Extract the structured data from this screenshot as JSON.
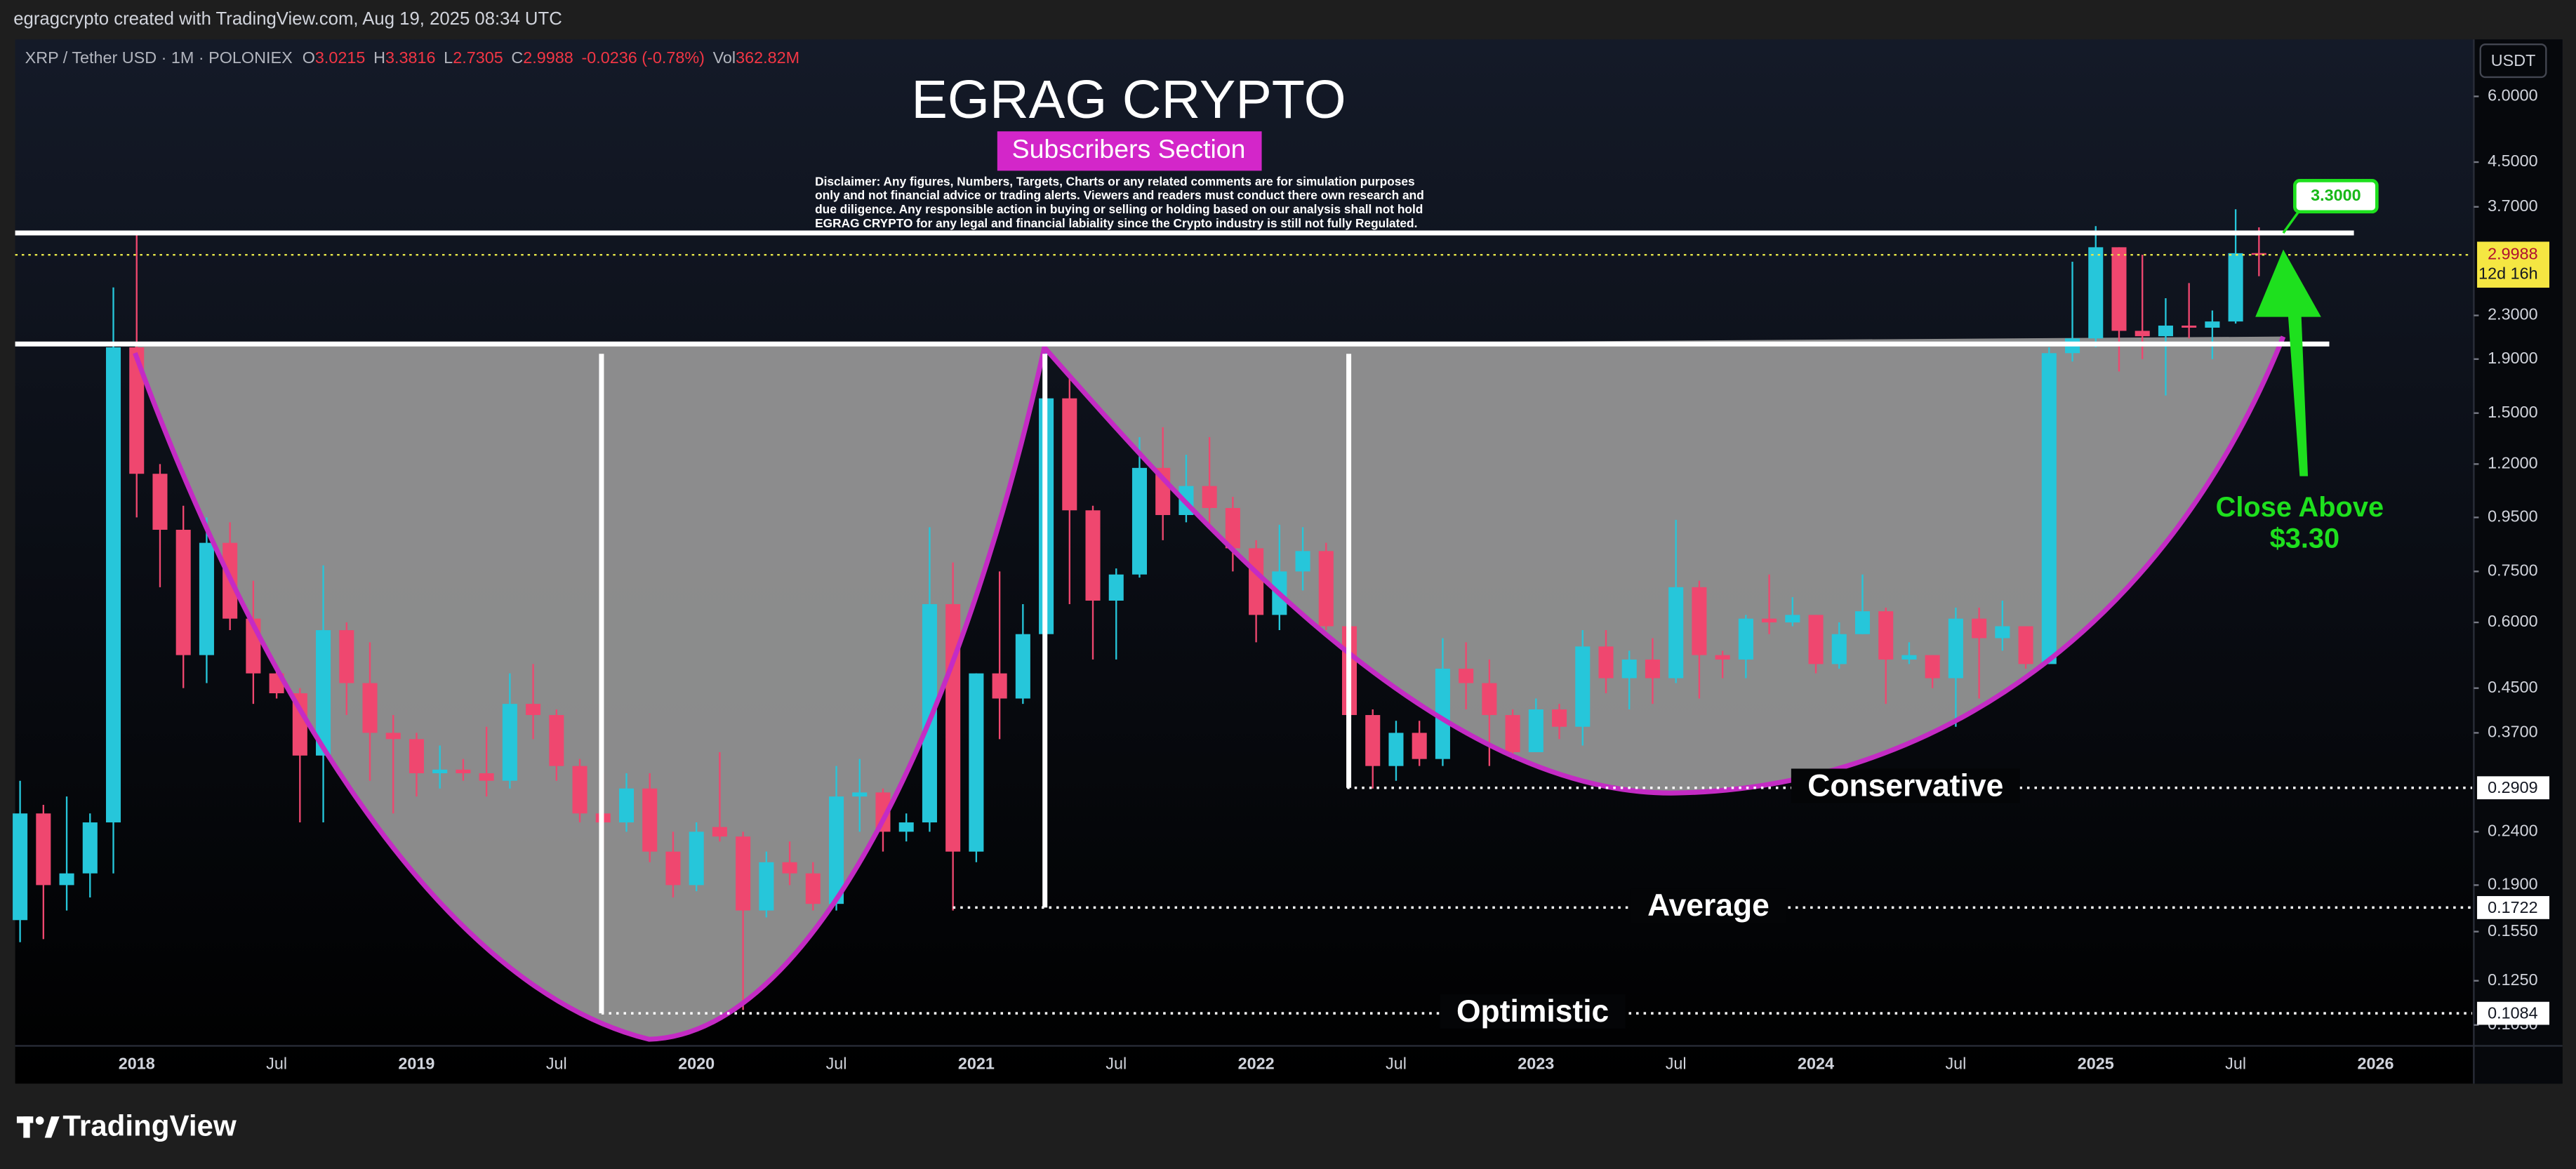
{
  "header": {
    "credit": "egragcrypto created with TradingView.com, Aug 19, 2025 08:34 UTC",
    "brand": "TradingView"
  },
  "chart_data": {
    "type": "candlestick",
    "symbol": "XRP / Tether USD · 1M · POLONIEX",
    "ohlc_labels": [
      "O",
      "H",
      "L",
      "C"
    ],
    "change": "-0.0236 (-0.78%)",
    "volume_label": "Vol",
    "volume": "362.82M",
    "currency": "USDT",
    "title": "EGRAG CRYPTO",
    "subtitle": "Subscribers Section",
    "disclaimer": [
      "Disclaimer: Any figures, Numbers, Targets, Charts or any related comments are for simulation purposes",
      "only and not financial advice or trading alerts. Viewers and readers must conduct there own research and",
      "due diligence. Any responsible action in buying or selling or holding based on our analysis shall not hold",
      "EGRAG CRYPTO for any legal and financial labiality since the Crypto industry is still not fully Regulated."
    ],
    "categories": [
      null,
      null,
      null,
      null,
      null,
      "2018",
      null,
      null,
      null,
      null,
      null,
      "Jul",
      null,
      null,
      null,
      null,
      null,
      "2019",
      null,
      null,
      null,
      null,
      null,
      "Jul",
      null,
      null,
      null,
      null,
      null,
      "2020",
      null,
      null,
      null,
      null,
      null,
      "Jul",
      null,
      null,
      null,
      null,
      null,
      "2021",
      null,
      null,
      null,
      null,
      null,
      "Jul",
      null,
      null,
      null,
      null,
      null,
      "2022",
      null,
      null,
      null,
      null,
      null,
      "Jul",
      null,
      null,
      null,
      null,
      null,
      "2023",
      null,
      null,
      null,
      null,
      null,
      "Jul",
      null,
      null,
      null,
      null,
      null,
      "2024",
      null,
      null,
      null,
      null,
      null,
      "Jul",
      null,
      null,
      null,
      null,
      null,
      "2025",
      null,
      null,
      null,
      null,
      null,
      "Jul",
      null,
      null,
      null,
      null,
      null,
      "2026",
      null,
      null,
      null,
      null
    ],
    "open": [
      0.163,
      0.26,
      0.19,
      0.2,
      0.25,
      2.0,
      1.15,
      0.9,
      0.52,
      0.85,
      0.61,
      0.48,
      0.44,
      0.335,
      0.58,
      0.46,
      0.37,
      0.36,
      0.31,
      0.315,
      0.31,
      0.3,
      0.42,
      0.4,
      0.32,
      0.26,
      0.25,
      0.29,
      0.22,
      0.19,
      0.245,
      0.235,
      0.17,
      0.21,
      0.2,
      0.175,
      0.28,
      0.285,
      0.24,
      0.25,
      0.65,
      0.22,
      0.48,
      0.43,
      0.57,
      1.6,
      0.98,
      0.66,
      0.74,
      1.18,
      0.96,
      1.09,
      0.99,
      0.83,
      0.62,
      0.75,
      0.82,
      0.59,
      0.4,
      0.32,
      0.37,
      0.33,
      0.49,
      0.46,
      0.4,
      0.34,
      0.41,
      0.38,
      0.54,
      0.47,
      0.51,
      0.47,
      0.7,
      0.52,
      0.51,
      0.61,
      0.6,
      0.62,
      0.5,
      0.57,
      0.63,
      0.51,
      0.52,
      0.47,
      0.61,
      0.56,
      0.59,
      0.5,
      1.95,
      2.08,
      3.1,
      2.15,
      2.1,
      2.2,
      2.18,
      2.24,
      3.0215,
      null,
      null,
      null,
      null,
      null,
      null,
      null,
      null,
      null
    ],
    "high": [
      0.3,
      0.27,
      0.28,
      0.26,
      2.6,
      3.3,
      1.2,
      1.0,
      0.95,
      0.93,
      0.72,
      0.5,
      0.45,
      0.77,
      0.6,
      0.55,
      0.4,
      0.37,
      0.35,
      0.33,
      0.38,
      0.48,
      0.5,
      0.41,
      0.33,
      0.31,
      0.31,
      0.31,
      0.24,
      0.25,
      0.34,
      0.24,
      0.22,
      0.23,
      0.21,
      0.32,
      0.33,
      0.29,
      0.26,
      0.91,
      0.78,
      0.48,
      0.75,
      0.65,
      1.97,
      1.75,
      1.0,
      0.76,
      1.35,
      1.41,
      1.25,
      1.35,
      1.04,
      0.86,
      0.92,
      0.91,
      0.85,
      0.65,
      0.41,
      0.39,
      0.39,
      0.56,
      0.55,
      0.51,
      0.41,
      0.43,
      0.42,
      0.58,
      0.58,
      0.53,
      0.56,
      0.94,
      0.72,
      0.53,
      0.62,
      0.74,
      0.67,
      0.62,
      0.6,
      0.74,
      0.64,
      0.55,
      0.52,
      0.64,
      0.64,
      0.66,
      0.59,
      2.0,
      2.91,
      3.4,
      3.1,
      3.0,
      2.48,
      2.65,
      2.35,
      3.66,
      3.3816,
      null,
      null,
      null,
      null,
      null,
      null,
      null,
      null,
      null
    ],
    "low": [
      0.148,
      0.15,
      0.17,
      0.18,
      0.2,
      0.95,
      0.7,
      0.45,
      0.46,
      0.58,
      0.42,
      0.43,
      0.25,
      0.25,
      0.4,
      0.3,
      0.26,
      0.28,
      0.29,
      0.3,
      0.28,
      0.29,
      0.36,
      0.3,
      0.25,
      0.22,
      0.24,
      0.21,
      0.18,
      0.185,
      0.23,
      0.11,
      0.165,
      0.19,
      0.17,
      0.17,
      0.24,
      0.22,
      0.23,
      0.24,
      0.17,
      0.21,
      0.36,
      0.42,
      0.55,
      0.65,
      0.51,
      0.51,
      0.73,
      0.86,
      0.93,
      0.92,
      0.75,
      0.55,
      0.58,
      0.69,
      0.58,
      0.33,
      0.29,
      0.3,
      0.32,
      0.32,
      0.41,
      0.32,
      0.33,
      0.34,
      0.36,
      0.35,
      0.44,
      0.41,
      0.42,
      0.46,
      0.43,
      0.47,
      0.47,
      0.57,
      0.59,
      0.48,
      0.49,
      0.57,
      0.42,
      0.5,
      0.45,
      0.38,
      0.43,
      0.53,
      0.49,
      0.5,
      1.88,
      2.0,
      1.8,
      1.9,
      1.62,
      2.08,
      1.9,
      2.22,
      2.7305,
      null,
      null,
      null,
      null,
      null,
      null,
      null,
      null,
      null
    ],
    "close": [
      0.26,
      0.19,
      0.2,
      0.25,
      2.0,
      1.15,
      0.9,
      0.52,
      0.85,
      0.61,
      0.48,
      0.44,
      0.335,
      0.58,
      0.46,
      0.37,
      0.36,
      0.31,
      0.315,
      0.31,
      0.3,
      0.42,
      0.4,
      0.32,
      0.26,
      0.25,
      0.29,
      0.22,
      0.19,
      0.24,
      0.235,
      0.17,
      0.21,
      0.2,
      0.175,
      0.28,
      0.285,
      0.24,
      0.25,
      0.65,
      0.22,
      0.48,
      0.43,
      0.57,
      1.6,
      0.98,
      0.66,
      0.74,
      1.18,
      0.96,
      1.09,
      0.99,
      0.83,
      0.62,
      0.75,
      0.82,
      0.59,
      0.4,
      0.32,
      0.37,
      0.33,
      0.49,
      0.46,
      0.4,
      0.34,
      0.41,
      0.38,
      0.54,
      0.47,
      0.51,
      0.47,
      0.7,
      0.52,
      0.51,
      0.61,
      0.6,
      0.62,
      0.5,
      0.57,
      0.63,
      0.51,
      0.52,
      0.47,
      0.61,
      0.56,
      0.59,
      0.5,
      1.95,
      2.08,
      3.1,
      2.15,
      2.1,
      2.2,
      2.18,
      2.24,
      3.02,
      2.9988,
      null,
      null,
      null,
      null,
      null,
      null,
      null,
      null,
      null
    ],
    "up_color": "#26c6da",
    "down_color": "#ef476f",
    "log_scale": true,
    "ylim": [
      0.094,
      7.7
    ],
    "yticks": [
      {
        "value": 6,
        "label": "6.0000"
      },
      {
        "value": 4.5,
        "label": "4.5000"
      },
      {
        "value": 3.7,
        "label": "3.7000"
      },
      {
        "value": 2.3,
        "label": "2.3000"
      },
      {
        "value": 1.9,
        "label": "1.9000"
      },
      {
        "value": 1.5,
        "label": "1.5000"
      },
      {
        "value": 1.2,
        "label": "1.2000"
      },
      {
        "value": 0.95,
        "label": "0.9500"
      },
      {
        "value": 0.75,
        "label": "0.7500"
      },
      {
        "value": 0.6,
        "label": "0.6000"
      },
      {
        "value": 0.45,
        "label": "0.4500"
      },
      {
        "value": 0.37,
        "label": "0.3700"
      },
      {
        "value": 0.24,
        "label": "0.2400"
      },
      {
        "value": 0.19,
        "label": "0.1900"
      },
      {
        "value": 0.155,
        "label": "0.1550"
      },
      {
        "value": 0.125,
        "label": "0.1250"
      },
      {
        "value": 0.103,
        "label": "0.1030"
      }
    ],
    "last_price": {
      "value": 2.9988,
      "countdown": "12d 16h"
    },
    "levels": [
      {
        "name": "Conservative",
        "value": 0.2909
      },
      {
        "name": "Average",
        "value": 0.1722
      },
      {
        "name": "Optimistic",
        "value": 0.1084
      }
    ],
    "resistance": {
      "value": 3.3,
      "label": "3.3000"
    },
    "support": 2.03,
    "annotation": [
      "Close  Above",
      "$3.30"
    ]
  }
}
